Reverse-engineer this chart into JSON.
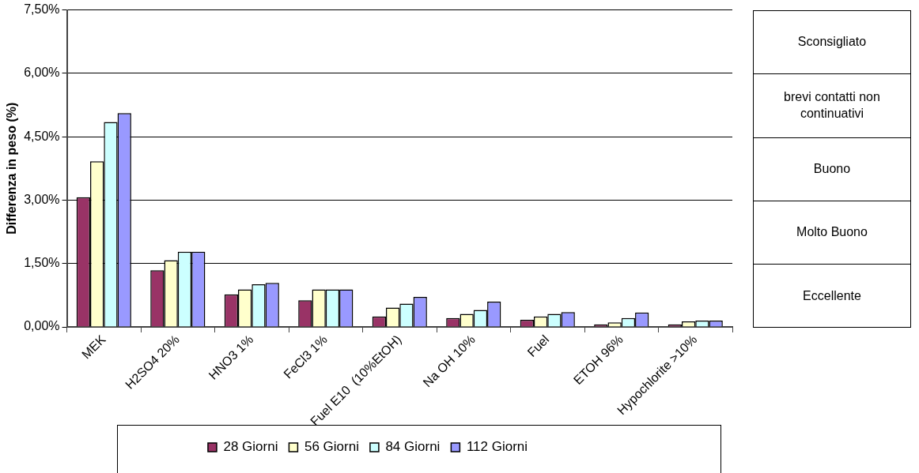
{
  "chart_data": {
    "type": "bar",
    "ylabel": "Differenza in peso (%)",
    "categories": [
      "MEK",
      "H2SO4 20%",
      "HNO3 1%",
      "FeCl3 1%",
      "Fuel E10  (10%EtOH)",
      "Na OH 10%",
      "Fuel",
      "ETOH 96%",
      "Hypochlorite >10%"
    ],
    "series": [
      {
        "name": "28 Giorni",
        "color": "#993366",
        "values": [
          3.07,
          1.34,
          0.77,
          0.63,
          0.25,
          0.21,
          0.17,
          0.06,
          0.06
        ]
      },
      {
        "name": "56 Giorni",
        "color": "#ffffcc",
        "values": [
          3.92,
          1.58,
          0.89,
          0.89,
          0.46,
          0.31,
          0.25,
          0.11,
          0.13
        ]
      },
      {
        "name": "84 Giorni",
        "color": "#ccffff",
        "values": [
          4.85,
          1.78,
          1.01,
          0.89,
          0.55,
          0.4,
          0.31,
          0.21,
          0.15
        ]
      },
      {
        "name": "112 Giorni",
        "color": "#9999ff",
        "values": [
          5.06,
          1.78,
          1.04,
          0.89,
          0.71,
          0.6,
          0.35,
          0.34,
          0.15
        ]
      }
    ],
    "ylim": [
      0,
      7.5
    ],
    "yticks": [
      {
        "value": 0,
        "label": "0,00%"
      },
      {
        "value": 1.5,
        "label": "1,50%"
      },
      {
        "value": 3,
        "label": "3,00%"
      },
      {
        "value": 4.5,
        "label": "4,50%"
      },
      {
        "value": 6,
        "label": "6,00%"
      },
      {
        "value": 7.5,
        "label": "7,50%"
      }
    ],
    "grid": "y",
    "legend": "bottom",
    "annotations": [
      "Sconsigliato",
      "brevi contatti non continuativi",
      "Buono",
      "Molto Buono",
      "Eccellente"
    ]
  }
}
